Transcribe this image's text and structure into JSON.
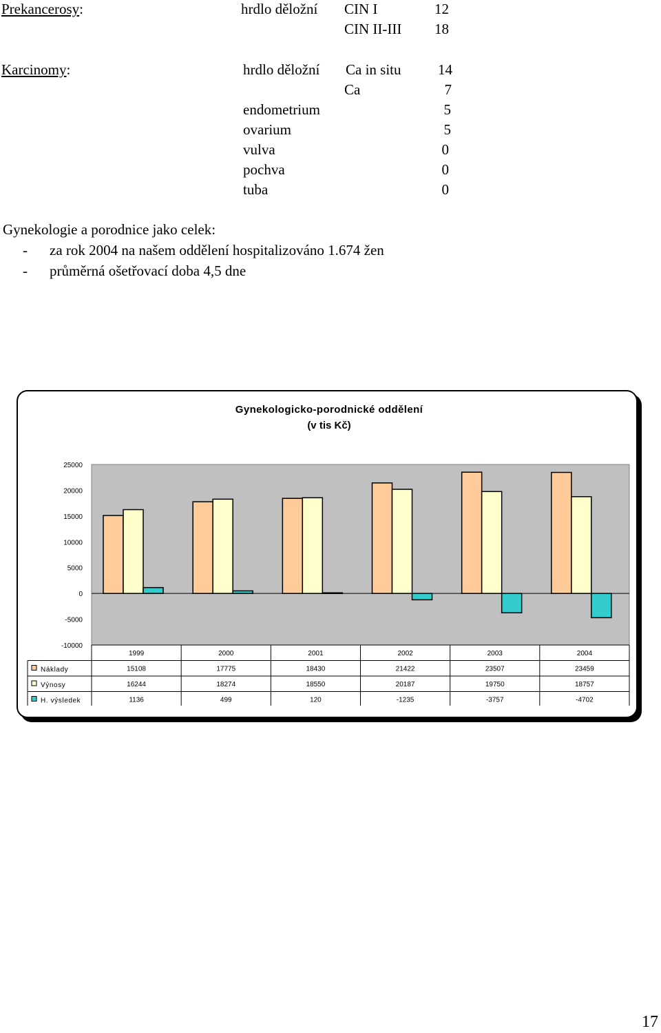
{
  "prekancerosy": {
    "heading": "Prekancerosy",
    "colon": ":",
    "organ": "hrdlo děložní",
    "rows": [
      {
        "label": "CIN I",
        "value": "12"
      },
      {
        "label": "CIN II-III",
        "value": "18"
      }
    ]
  },
  "karcinomy": {
    "heading": "Karcinomy",
    "colon": ":",
    "organ": "hrdlo děložní",
    "cervix_rows": [
      {
        "label": "Ca in situ",
        "value": "14"
      },
      {
        "label": "Ca",
        "value": "7"
      }
    ],
    "other_rows": [
      {
        "label": "endometrium",
        "value": "5"
      },
      {
        "label": "ovarium",
        "value": "5"
      },
      {
        "label": "vulva",
        "value": "0"
      },
      {
        "label": "pochva",
        "value": "0"
      },
      {
        "label": "tuba",
        "value": "0"
      }
    ]
  },
  "overall": {
    "heading": "Gynekologie a porodnice jako celek:",
    "bullets": [
      {
        "dash": "-",
        "text": "za rok 2004 na našem oddělení hospitalizováno 1.674 žen"
      },
      {
        "dash": "-",
        "text": "průměrná ošetřovací doba 4,5 dne"
      }
    ]
  },
  "chart_data": {
    "type": "bar",
    "title": "Gynekologicko-porodnické oddělení",
    "subtitle": "(v tis Kč)",
    "categories": [
      "1999",
      "2000",
      "2001",
      "2002",
      "2003",
      "2004"
    ],
    "series": [
      {
        "name": "Náklady",
        "values": [
          15108,
          17775,
          18430,
          21422,
          23507,
          23459
        ],
        "color": "#ffcc99"
      },
      {
        "name": "Výnosy",
        "values": [
          16244,
          18274,
          18550,
          20187,
          19750,
          18757
        ],
        "color": "#ffffcc"
      },
      {
        "name": "H. výsledek",
        "values": [
          1136,
          499,
          120,
          -1235,
          -3757,
          -4702
        ],
        "color": "#33cccc"
      }
    ],
    "ylim": [
      -10000,
      25000
    ],
    "yticks": [
      "25000",
      "20000",
      "15000",
      "10000",
      "5000",
      "0",
      "-5000",
      "-10000"
    ],
    "plot_background": "#c0c0c0",
    "legend": "data-table"
  },
  "page_number": "17"
}
